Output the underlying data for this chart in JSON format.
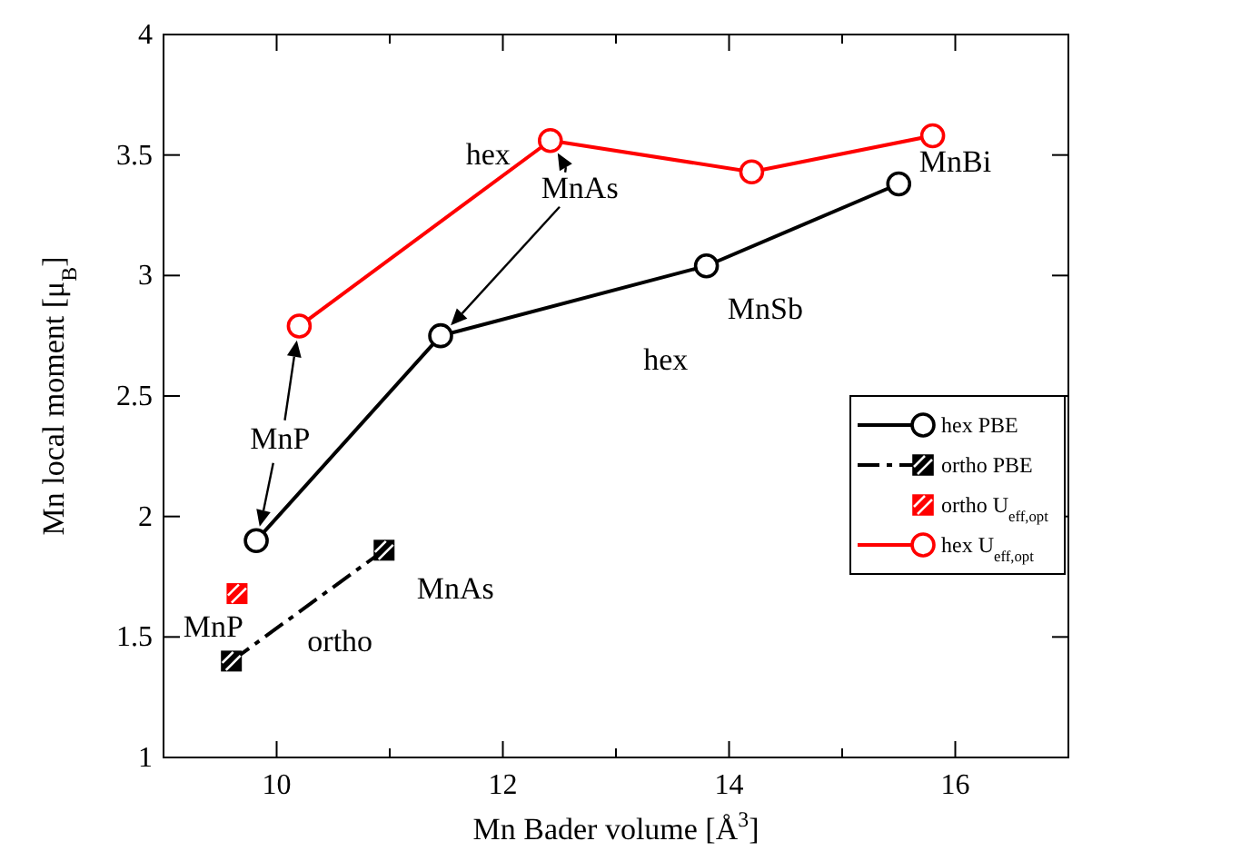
{
  "chart_data": {
    "type": "line",
    "xlabel": "Mn Bader volume [Å$^{3}$]",
    "ylabel": "Mn local moment  [μ$_{B}$]",
    "xlim": [
      9,
      17
    ],
    "xticks": [
      {
        "value": 9,
        "label": null
      },
      10,
      {
        "value": 11,
        "label": null
      },
      12,
      {
        "value": 13,
        "label": null
      },
      14,
      {
        "value": 15,
        "label": null
      },
      16,
      {
        "value": 17,
        "label": null
      }
    ],
    "ylim": [
      1,
      4
    ],
    "yticks": [
      1,
      1.5,
      2,
      2.5,
      3,
      3.5,
      4
    ],
    "grid": false,
    "legend": "right",
    "series": [
      {
        "name": "hex PBE",
        "color": "#000000",
        "marker": "circle",
        "line_style": "solid",
        "x": [
          9.82,
          11.45,
          13.8,
          15.5
        ],
        "values": [
          1.9,
          2.75,
          3.04,
          3.38
        ]
      },
      {
        "name": "ortho PBE",
        "color": "#000000",
        "marker": "square",
        "line_style": "dashed",
        "x": [
          9.6,
          10.95
        ],
        "values": [
          1.4,
          1.86
        ]
      },
      {
        "name": "ortho U$_{eff,opt}$",
        "type": "scatter",
        "color": "#ff0000",
        "marker": "square",
        "x": [
          9.65
        ],
        "values": [
          1.68
        ]
      },
      {
        "name": "hex U$_{eff,opt}$",
        "color": "#ff0000",
        "marker": "circle",
        "line_style": "solid",
        "x": [
          10.2,
          12.42,
          14.2,
          15.8
        ],
        "values": [
          2.79,
          3.56,
          3.43,
          3.58
        ]
      }
    ],
    "annotations": [
      "hex",
      {
        "text": "MnAs",
        "x": 12.42,
        "y": 3.56
      },
      {
        "text": "MnP",
        "x": 9.82,
        "y": 1.9
      },
      "hex",
      "MnSb",
      "MnBi",
      "MnAs",
      "MnP",
      "ortho"
    ]
  }
}
